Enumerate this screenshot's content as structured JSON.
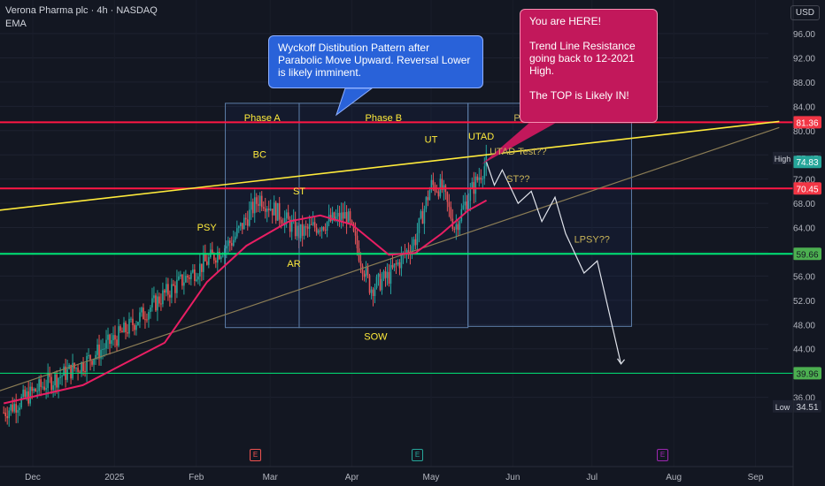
{
  "header": {
    "title": "Verona Pharma plc · 4h · NASDAQ",
    "indicator": "EMA",
    "currency": "USD"
  },
  "callouts": {
    "blue": "Wyckoff Distibution Pattern after Parabolic Move Upward.  Reversal Lower is likely imminent.",
    "pink": "You are HERE!\n\nTrend Line Resistance going back to 12-2021 High.\n\nThe TOP is Likely IN!"
  },
  "earnings_marker": "E",
  "colors": {
    "background": "#131722",
    "up": "#26a69a",
    "down": "#ef5350",
    "ema": "#e91e63",
    "resistance_red": "#ff1744",
    "support_green": "#00e676",
    "trendline_yellow": "#ffeb3b",
    "callout_blue": "#2962d9",
    "callout_pink": "#c2185b"
  },
  "chart_data": {
    "type": "candlestick",
    "x_axis": [
      "Dec",
      "2025",
      "Feb",
      "Mar",
      "Apr",
      "May",
      "Jun",
      "Jul",
      "Aug",
      "Sep"
    ],
    "y_axis": {
      "ticks": [
        96,
        92,
        88,
        84,
        80,
        76,
        72,
        68,
        64,
        60,
        56,
        52,
        48,
        44,
        40,
        36
      ],
      "tick_labels": [
        "96.00",
        "92.00",
        "88.00",
        "84.00",
        "80.00",
        "76.00",
        "72.00",
        "68.00",
        "64.00",
        "60.00",
        "56.00",
        "52.00",
        "48.00",
        "44.00",
        "40.00",
        "36.00"
      ],
      "ylim": [
        32,
        100
      ]
    },
    "price_path": [
      {
        "x": "2024-11-20",
        "y": 33.5
      },
      {
        "x": "2024-12-05",
        "y": 38.0
      },
      {
        "x": "2024-12-20",
        "y": 41.5
      },
      {
        "x": "2025-01-05",
        "y": 47.0
      },
      {
        "x": "2025-01-20",
        "y": 53.0
      },
      {
        "x": "2025-02-01",
        "y": 57.0
      },
      {
        "x": "2025-02-15",
        "y": 62.0
      },
      {
        "x": "2025-02-25",
        "y": 69.0
      },
      {
        "x": "2025-03-05",
        "y": 66.0
      },
      {
        "x": "2025-03-12",
        "y": 63.0
      },
      {
        "x": "2025-03-20",
        "y": 64.5
      },
      {
        "x": "2025-03-30",
        "y": 66.0
      },
      {
        "x": "2025-04-08",
        "y": 54.0
      },
      {
        "x": "2025-04-15",
        "y": 56.0
      },
      {
        "x": "2025-04-25",
        "y": 62.0
      },
      {
        "x": "2025-05-01",
        "y": 71.0
      },
      {
        "x": "2025-05-05",
        "y": 70.5
      },
      {
        "x": "2025-05-10",
        "y": 64.0
      },
      {
        "x": "2025-05-15",
        "y": 69.0
      },
      {
        "x": "2025-05-22",
        "y": 74.8
      }
    ],
    "ema_path": [
      {
        "x": "2024-11-20",
        "y": 35.0
      },
      {
        "x": "2024-12-20",
        "y": 38.0
      },
      {
        "x": "2025-01-20",
        "y": 45.0
      },
      {
        "x": "2025-02-05",
        "y": 55.0
      },
      {
        "x": "2025-02-20",
        "y": 61.0
      },
      {
        "x": "2025-03-08",
        "y": 65.0
      },
      {
        "x": "2025-03-20",
        "y": 66.0
      },
      {
        "x": "2025-04-01",
        "y": 64.5
      },
      {
        "x": "2025-04-15",
        "y": 59.5
      },
      {
        "x": "2025-04-25",
        "y": 59.8
      },
      {
        "x": "2025-05-05",
        "y": 63.0
      },
      {
        "x": "2025-05-15",
        "y": 66.8
      },
      {
        "x": "2025-05-22",
        "y": 68.5
      }
    ],
    "projection_path": [
      {
        "x": "2025-05-22",
        "y": 74.8
      },
      {
        "x": "2025-05-25",
        "y": 71.0
      },
      {
        "x": "2025-05-28",
        "y": 73.5
      },
      {
        "x": "2025-06-03",
        "y": 68.0
      },
      {
        "x": "2025-06-08",
        "y": 70.0
      },
      {
        "x": "2025-06-12",
        "y": 65.0
      },
      {
        "x": "2025-06-17",
        "y": 69.0
      },
      {
        "x": "2025-06-21",
        "y": 63.0
      },
      {
        "x": "2025-06-28",
        "y": 56.5
      },
      {
        "x": "2025-07-03",
        "y": 58.5
      },
      {
        "x": "2025-07-12",
        "y": 41.5
      }
    ],
    "horizontal_levels": [
      {
        "value": 81.36,
        "label": "81.36",
        "color": "#ff1744"
      },
      {
        "value": 70.45,
        "label": "70.45",
        "color": "#ff1744"
      },
      {
        "value": 59.66,
        "label": "59.66",
        "color": "#00e676"
      },
      {
        "value": 39.96,
        "label": "39.96",
        "color": "#00e676"
      }
    ],
    "price_markers": [
      {
        "text": "High",
        "value": "75.47"
      },
      {
        "text": "",
        "value": "74.83"
      },
      {
        "text": "Low",
        "value": "34.51"
      }
    ],
    "trendlines": [
      {
        "name": "yellow",
        "from": {
          "x": "2024-11-01",
          "y": 66.0
        },
        "to": {
          "x": "2025-09-10",
          "y": 81.5
        }
      },
      {
        "name": "support",
        "from": {
          "x": "2024-11-01",
          "y": 34.5
        },
        "to": {
          "x": "2025-09-10",
          "y": 80.5
        }
      }
    ],
    "phase_boxes": [
      {
        "label": "Phase A",
        "x0": "2025-02-12",
        "x1": "2025-03-12",
        "y0": 47.5,
        "y1": 84.5
      },
      {
        "label": "Phase B",
        "x0": "2025-03-12",
        "x1": "2025-05-15",
        "y0": 47.5,
        "y1": 84.5
      },
      {
        "label": "Phases C & D??",
        "x0": "2025-05-15",
        "x1": "2025-07-16",
        "y0": 47.7,
        "y1": 84.5
      }
    ],
    "annotations": [
      {
        "text": "PSY",
        "x": "2025-02-05",
        "y": 63.5,
        "color": "#ffeb3b"
      },
      {
        "text": "BC",
        "x": "2025-02-25",
        "y": 75.5,
        "color": "#ffeb3b"
      },
      {
        "text": "ST",
        "x": "2025-03-12",
        "y": 69.5,
        "color": "#ffeb3b"
      },
      {
        "text": "AR",
        "x": "2025-03-10",
        "y": 57.5,
        "color": "#ffeb3b"
      },
      {
        "text": "UT",
        "x": "2025-05-01",
        "y": 78.0,
        "color": "#ffeb3b"
      },
      {
        "text": "SOW",
        "x": "2025-04-10",
        "y": 45.5,
        "color": "#ffeb3b"
      },
      {
        "text": "UTAD",
        "x": "2025-05-20",
        "y": 78.5,
        "color": "#ffeb3b"
      },
      {
        "text": "UTAD Test??",
        "x": "2025-06-03",
        "y": 76.0,
        "color": "#c9b458"
      },
      {
        "text": "ST??",
        "x": "2025-06-03",
        "y": 71.5,
        "color": "#c9b458"
      },
      {
        "text": "LPSY??",
        "x": "2025-07-01",
        "y": 61.5,
        "color": "#c9b458"
      }
    ],
    "earnings_dates": [
      {
        "x": "2025-03-01",
        "color": "#ef5350"
      },
      {
        "x": "2025-04-28",
        "color": "#26a69a"
      },
      {
        "x": "2025-08-01",
        "color": "#9c27b0"
      }
    ]
  }
}
